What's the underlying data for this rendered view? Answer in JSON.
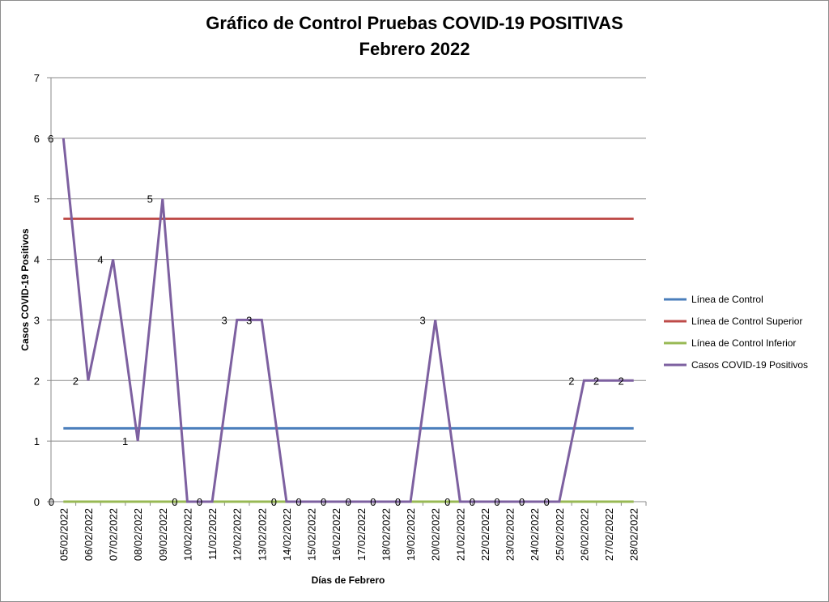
{
  "chart_data": {
    "type": "line",
    "title_line1": "Gráfico de Control Pruebas COVID-19 POSITIVAS",
    "title_line2": "Febrero 2022",
    "xlabel": "Días de Febrero",
    "ylabel": "Casos COVID-19 Positivos",
    "ylim": [
      0,
      7
    ],
    "yticks": [
      "0",
      "1",
      "2",
      "3",
      "4",
      "5",
      "6",
      "7"
    ],
    "grid": "horizontal",
    "legend_position": "right",
    "categories": [
      "05/02/2022",
      "06/02/2022",
      "07/02/2022",
      "08/02/2022",
      "09/02/2022",
      "10/02/2022",
      "11/02/2022",
      "12/02/2022",
      "13/02/2022",
      "14/02/2022",
      "15/02/2022",
      "16/02/2022",
      "17/02/2022",
      "18/02/2022",
      "19/02/2022",
      "20/02/2022",
      "21/02/2022",
      "22/02/2022",
      "23/02/2022",
      "24/02/2022",
      "25/02/2022",
      "26/02/2022",
      "27/02/2022",
      "28/02/2022"
    ],
    "series": [
      {
        "name": "Línea de Control",
        "color": "#4a7ebb",
        "values": [
          1.21,
          1.21,
          1.21,
          1.21,
          1.21,
          1.21,
          1.21,
          1.21,
          1.21,
          1.21,
          1.21,
          1.21,
          1.21,
          1.21,
          1.21,
          1.21,
          1.21,
          1.21,
          1.21,
          1.21,
          1.21,
          1.21,
          1.21,
          1.21
        ]
      },
      {
        "name": "Línea de Control Superior",
        "color": "#be4b48",
        "values": [
          4.67,
          4.67,
          4.67,
          4.67,
          4.67,
          4.67,
          4.67,
          4.67,
          4.67,
          4.67,
          4.67,
          4.67,
          4.67,
          4.67,
          4.67,
          4.67,
          4.67,
          4.67,
          4.67,
          4.67,
          4.67,
          4.67,
          4.67,
          4.67
        ]
      },
      {
        "name": "Línea de Control Inferior",
        "color": "#98b954",
        "values": [
          0,
          0,
          0,
          0,
          0,
          0,
          0,
          0,
          0,
          0,
          0,
          0,
          0,
          0,
          0,
          0,
          0,
          0,
          0,
          0,
          0,
          0,
          0,
          0
        ]
      },
      {
        "name": "Casos COVID-19 Positivos",
        "color": "#7d60a0",
        "values": [
          6,
          2,
          4,
          1,
          5,
          0,
          0,
          3,
          3,
          0,
          0,
          0,
          0,
          0,
          0,
          3,
          0,
          0,
          0,
          0,
          0,
          2,
          2,
          2
        ],
        "data_labels": true
      }
    ],
    "extra_labels": [
      "0"
    ]
  }
}
